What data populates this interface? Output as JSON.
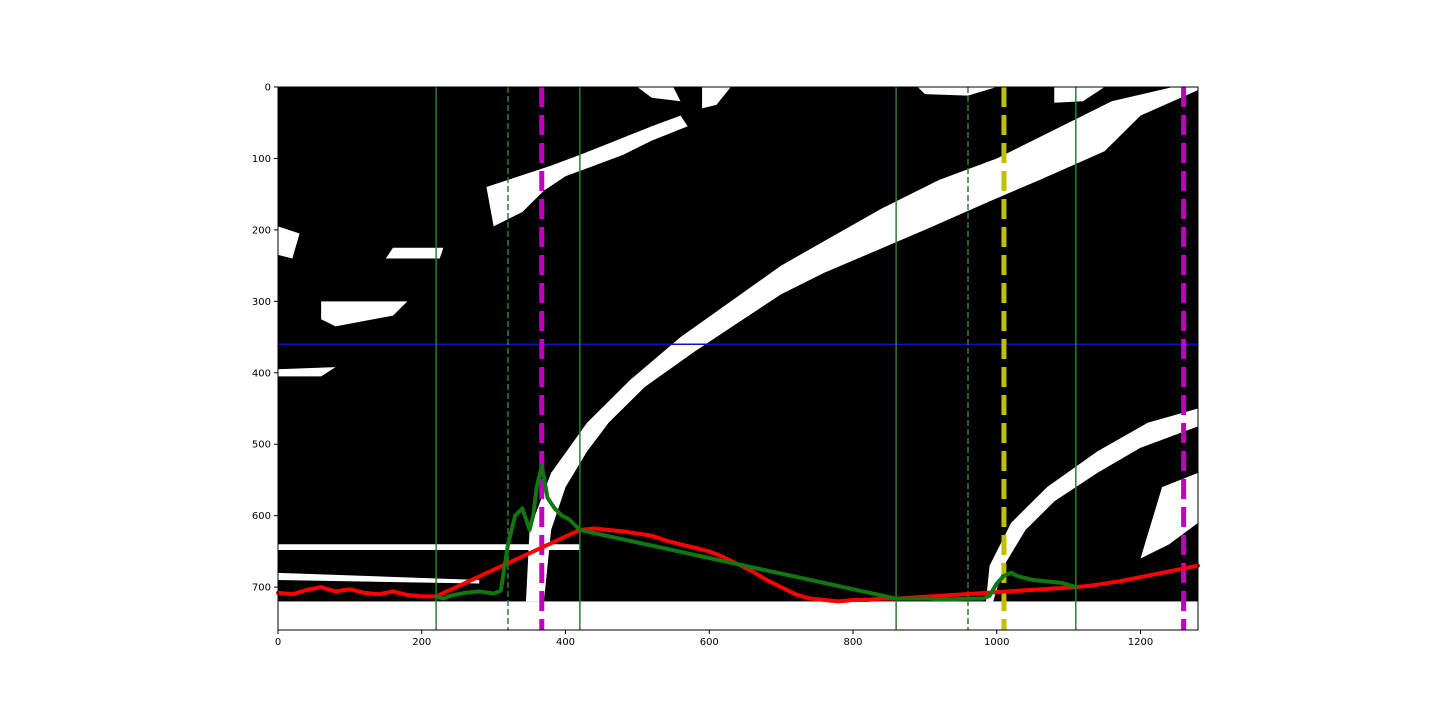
{
  "chart_data": {
    "type": "line",
    "xlim": [
      0,
      1280
    ],
    "ylim": [
      760,
      0
    ],
    "image_height": 720,
    "x_ticks": [
      0,
      200,
      400,
      600,
      800,
      1000,
      1200
    ],
    "y_ticks": [
      0,
      100,
      200,
      300,
      400,
      500,
      600,
      700
    ],
    "grid": false,
    "horizontal_line": {
      "y": 360,
      "color": "#1010c8"
    },
    "vertical_lines": [
      {
        "x": 220,
        "style": "solid",
        "color": "#2e7d32"
      },
      {
        "x": 320,
        "style": "dashed-thin",
        "color": "#2e7d32"
      },
      {
        "x": 367,
        "style": "dashed-thick",
        "color": "#c000c0"
      },
      {
        "x": 420,
        "style": "solid",
        "color": "#2e7d32"
      },
      {
        "x": 860,
        "style": "solid",
        "color": "#2e7d32"
      },
      {
        "x": 960,
        "style": "dashed-thin",
        "color": "#2e7d32"
      },
      {
        "x": 1010,
        "style": "dashed-thick",
        "color": "#c0c000"
      },
      {
        "x": 1110,
        "style": "solid",
        "color": "#2e7d32"
      },
      {
        "x": 1260,
        "style": "dashed-thick",
        "color": "#c000c0"
      }
    ],
    "series": [
      {
        "color": "#ff0000",
        "points": [
          [
            0,
            708
          ],
          [
            20,
            710
          ],
          [
            40,
            704
          ],
          [
            60,
            700
          ],
          [
            80,
            706
          ],
          [
            100,
            703
          ],
          [
            120,
            708
          ],
          [
            140,
            710
          ],
          [
            160,
            706
          ],
          [
            180,
            711
          ],
          [
            200,
            713
          ],
          [
            220,
            713
          ],
          [
            420,
            620
          ],
          [
            440,
            618
          ],
          [
            460,
            620
          ],
          [
            480,
            622
          ],
          [
            500,
            625
          ],
          [
            520,
            628
          ],
          [
            540,
            635
          ],
          [
            560,
            640
          ],
          [
            580,
            645
          ],
          [
            600,
            650
          ],
          [
            620,
            658
          ],
          [
            640,
            668
          ],
          [
            660,
            678
          ],
          [
            680,
            690
          ],
          [
            700,
            700
          ],
          [
            720,
            710
          ],
          [
            740,
            716
          ],
          [
            760,
            718
          ],
          [
            780,
            720
          ],
          [
            800,
            718
          ],
          [
            820,
            718
          ],
          [
            840,
            716
          ],
          [
            860,
            716
          ],
          [
            1110,
            700
          ],
          [
            1130,
            698
          ],
          [
            1150,
            695
          ],
          [
            1170,
            692
          ],
          [
            1190,
            688
          ],
          [
            1210,
            684
          ],
          [
            1230,
            680
          ],
          [
            1250,
            676
          ],
          [
            1270,
            672
          ],
          [
            1280,
            670
          ]
        ]
      },
      {
        "color": "#117711",
        "points": [
          [
            220,
            713
          ],
          [
            230,
            716
          ],
          [
            240,
            712
          ],
          [
            260,
            708
          ],
          [
            280,
            706
          ],
          [
            300,
            709
          ],
          [
            310,
            705
          ],
          [
            320,
            640
          ],
          [
            330,
            600
          ],
          [
            340,
            590
          ],
          [
            350,
            620
          ],
          [
            355,
            600
          ],
          [
            360,
            560
          ],
          [
            367,
            530
          ],
          [
            375,
            575
          ],
          [
            385,
            590
          ],
          [
            395,
            600
          ],
          [
            405,
            605
          ],
          [
            415,
            615
          ],
          [
            420,
            620
          ],
          [
            860,
            716
          ],
          [
            880,
            716
          ],
          [
            900,
            716
          ],
          [
            920,
            717
          ],
          [
            940,
            717
          ],
          [
            960,
            716
          ],
          [
            980,
            716
          ],
          [
            990,
            712
          ],
          [
            1000,
            695
          ],
          [
            1010,
            684
          ],
          [
            1020,
            680
          ],
          [
            1030,
            685
          ],
          [
            1050,
            690
          ],
          [
            1070,
            692
          ],
          [
            1090,
            694
          ],
          [
            1110,
            700
          ]
        ]
      }
    ]
  },
  "colors": {
    "road_background": "#000000",
    "lane_fill": "#ffffff"
  }
}
